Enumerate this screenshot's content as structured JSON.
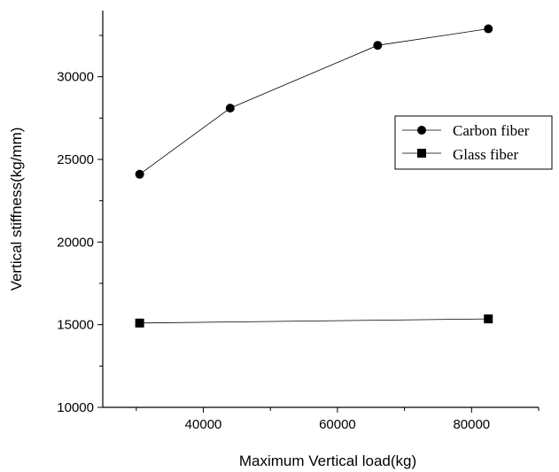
{
  "chart_data": {
    "type": "line",
    "title": "",
    "xlabel": "Maximum Vertical load(kg)",
    "ylabel": "Vertical stiffness(kg/mm)",
    "xlim": [
      25000,
      90000
    ],
    "ylim": [
      10000,
      34000
    ],
    "x_ticks": [
      40000,
      60000,
      80000
    ],
    "x_tick_labels": [
      "40000",
      "60000",
      "80000"
    ],
    "y_ticks": [
      10000,
      15000,
      20000,
      25000,
      30000
    ],
    "y_tick_labels": [
      "10000",
      "15000",
      "20000",
      "25000",
      "30000"
    ],
    "grid": false,
    "legend_position": "right",
    "series": [
      {
        "name": "Carbon fiber",
        "marker": "circle",
        "color": "#000000",
        "points": [
          {
            "x": 30500,
            "y": 24100
          },
          {
            "x": 44000,
            "y": 28100
          },
          {
            "x": 66000,
            "y": 31900
          },
          {
            "x": 82500,
            "y": 32900
          }
        ]
      },
      {
        "name": "Glass fiber",
        "marker": "square",
        "color": "#000000",
        "points": [
          {
            "x": 30500,
            "y": 15100
          },
          {
            "x": 82500,
            "y": 15350
          }
        ]
      }
    ]
  }
}
